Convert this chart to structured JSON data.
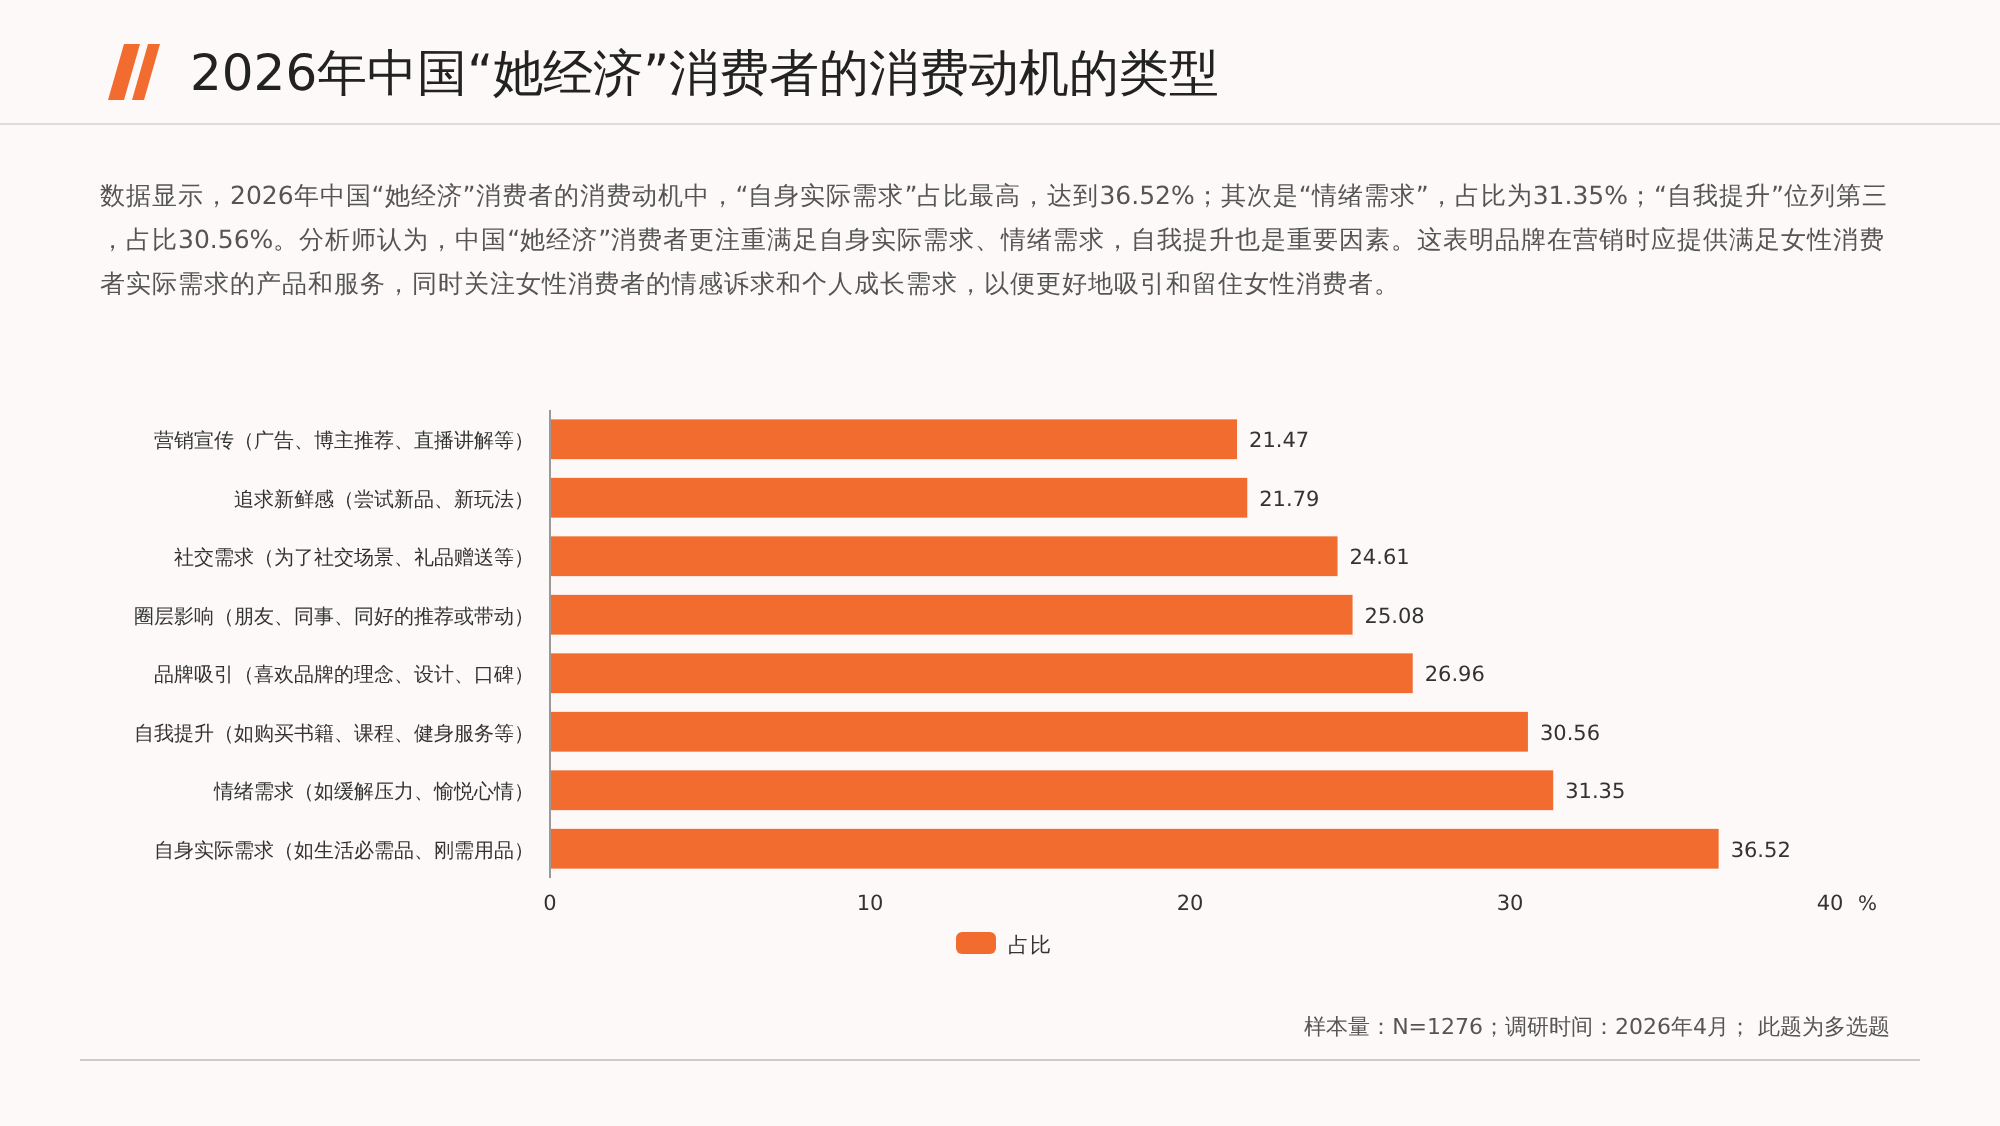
{
  "chart_data": {
    "type": "bar",
    "orientation": "horizontal",
    "title": "2026年中国“她经济”消费者的消费动机的类型",
    "subtitle": "数据显示，2026年中国“她经济”消费者的消费动机中，“自身实际需求”占比最高，达到36.52%；其次是“情绪需求”，占比为31.35%；“自我提升”位列第三，占比30.56%。分析师认为，中国“她经济”消费者更注重满足自身实际需求、情绪需求，自我提升也是重要因素。这表明品牌在营销时应提供满足女性消费者实际需求的产品和服务，同时关注女性消费者的情感诉求和个人成长需求，以便更好地吸引和留住女性消费者。",
    "categories": [
      "营销宣传（广告、博主推荐、直播讲解等）",
      "追求新鲜感（尝试新品、新玩法）",
      "社交需求（为了社交场景、礼品赠送等）",
      "圈层影响（朋友、同事、同好的推荐或带动）",
      "品牌吸引（喜欢品牌的理念、设计、口碑）",
      "自我提升（如购买书籍、课程、健身服务等）",
      "情绪需求（如缓解压力、愉悦心情）",
      "自身实际需求（如生活必需品、刚需用品）"
    ],
    "series": [
      {
        "name": "占比",
        "color": "#f26b2f",
        "values": [
          21.47,
          21.79,
          24.61,
          25.08,
          26.96,
          30.56,
          31.35,
          36.52
        ]
      }
    ],
    "xlabel": "%",
    "xlim": [
      0,
      40
    ],
    "xticks": [
      0,
      10,
      20,
      30,
      40
    ],
    "data_labels": true,
    "legend": "bottom",
    "grid": false,
    "annotations": [
      "样本量：N=1276；调研时间：2026年4月； 此题为多选题"
    ]
  }
}
